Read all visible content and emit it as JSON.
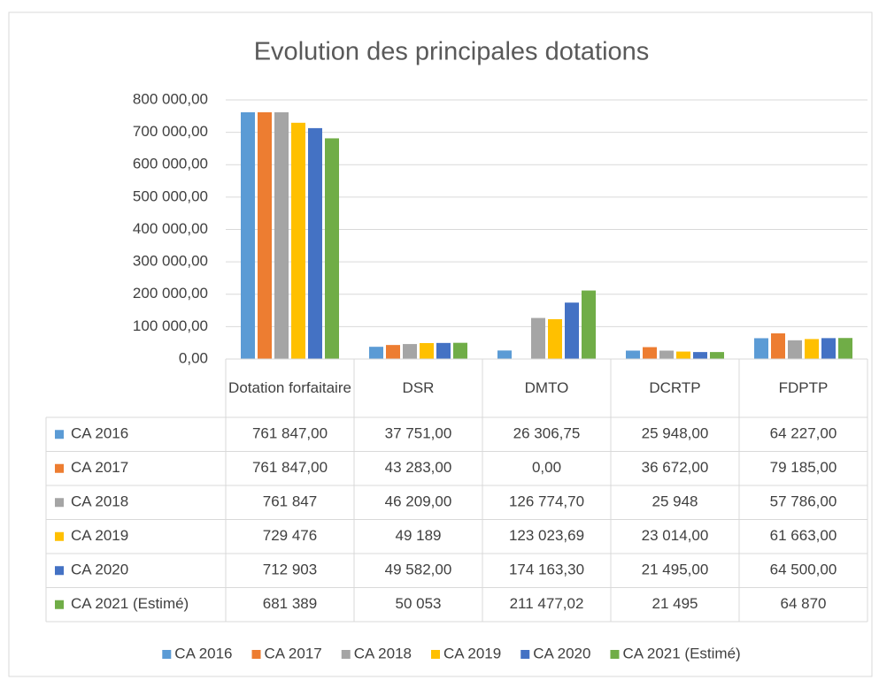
{
  "chart_data": {
    "type": "bar",
    "title": "Evolution des principales dotations",
    "categories": [
      "Dotation forfaitaire",
      "DSR",
      "DMTO",
      "DCRTP",
      "FDPTP"
    ],
    "series": [
      {
        "name": "CA 2016",
        "color": "#5b9bd5",
        "values": [
          761847,
          37751,
          26306.75,
          25948,
          64227
        ],
        "value_labels": [
          "761 847,00",
          "37 751,00",
          "26 306,75",
          "25 948,00",
          "64 227,00"
        ]
      },
      {
        "name": "CA 2017",
        "color": "#ed7d31",
        "values": [
          761847,
          43283,
          0,
          36672,
          79185
        ],
        "value_labels": [
          "761 847,00",
          "43 283,00",
          "0,00",
          "36 672,00",
          "79 185,00"
        ]
      },
      {
        "name": "CA 2018",
        "color": "#a5a5a5",
        "values": [
          761847,
          46209,
          126774.7,
          25948,
          57786
        ],
        "value_labels": [
          "761 847",
          "46 209,00",
          "126 774,70",
          "25 948",
          "57 786,00"
        ]
      },
      {
        "name": "CA 2019",
        "color": "#ffc000",
        "values": [
          729476,
          49189,
          123023.69,
          23014,
          61663
        ],
        "value_labels": [
          "729 476",
          "49 189",
          "123 023,69",
          "23 014,00",
          "61 663,00"
        ]
      },
      {
        "name": "CA 2020",
        "color": "#4472c4",
        "values": [
          712903,
          49582,
          174163.3,
          21495,
          64500
        ],
        "value_labels": [
          "712 903",
          "49 582,00",
          "174 163,30",
          "21 495,00",
          "64 500,00"
        ]
      },
      {
        "name": "CA 2021 (Estimé)",
        "color": "#70ad47",
        "values": [
          681389,
          50053,
          211477.02,
          21495,
          64870
        ],
        "value_labels": [
          "681 389",
          "50 053",
          "211 477,02",
          "21 495",
          "64 870"
        ]
      }
    ],
    "ylim": [
      0,
      800000
    ],
    "yticks": [
      {
        "value": 0,
        "label": "0,00"
      },
      {
        "value": 100000,
        "label": "100 000,00"
      },
      {
        "value": 200000,
        "label": "200 000,00"
      },
      {
        "value": 300000,
        "label": "300 000,00"
      },
      {
        "value": 400000,
        "label": "400 000,00"
      },
      {
        "value": 500000,
        "label": "500 000,00"
      },
      {
        "value": 600000,
        "label": "600 000,00"
      },
      {
        "value": 700000,
        "label": "700 000,00"
      },
      {
        "value": 800000,
        "label": "800 000,00"
      }
    ],
    "grid": true
  }
}
